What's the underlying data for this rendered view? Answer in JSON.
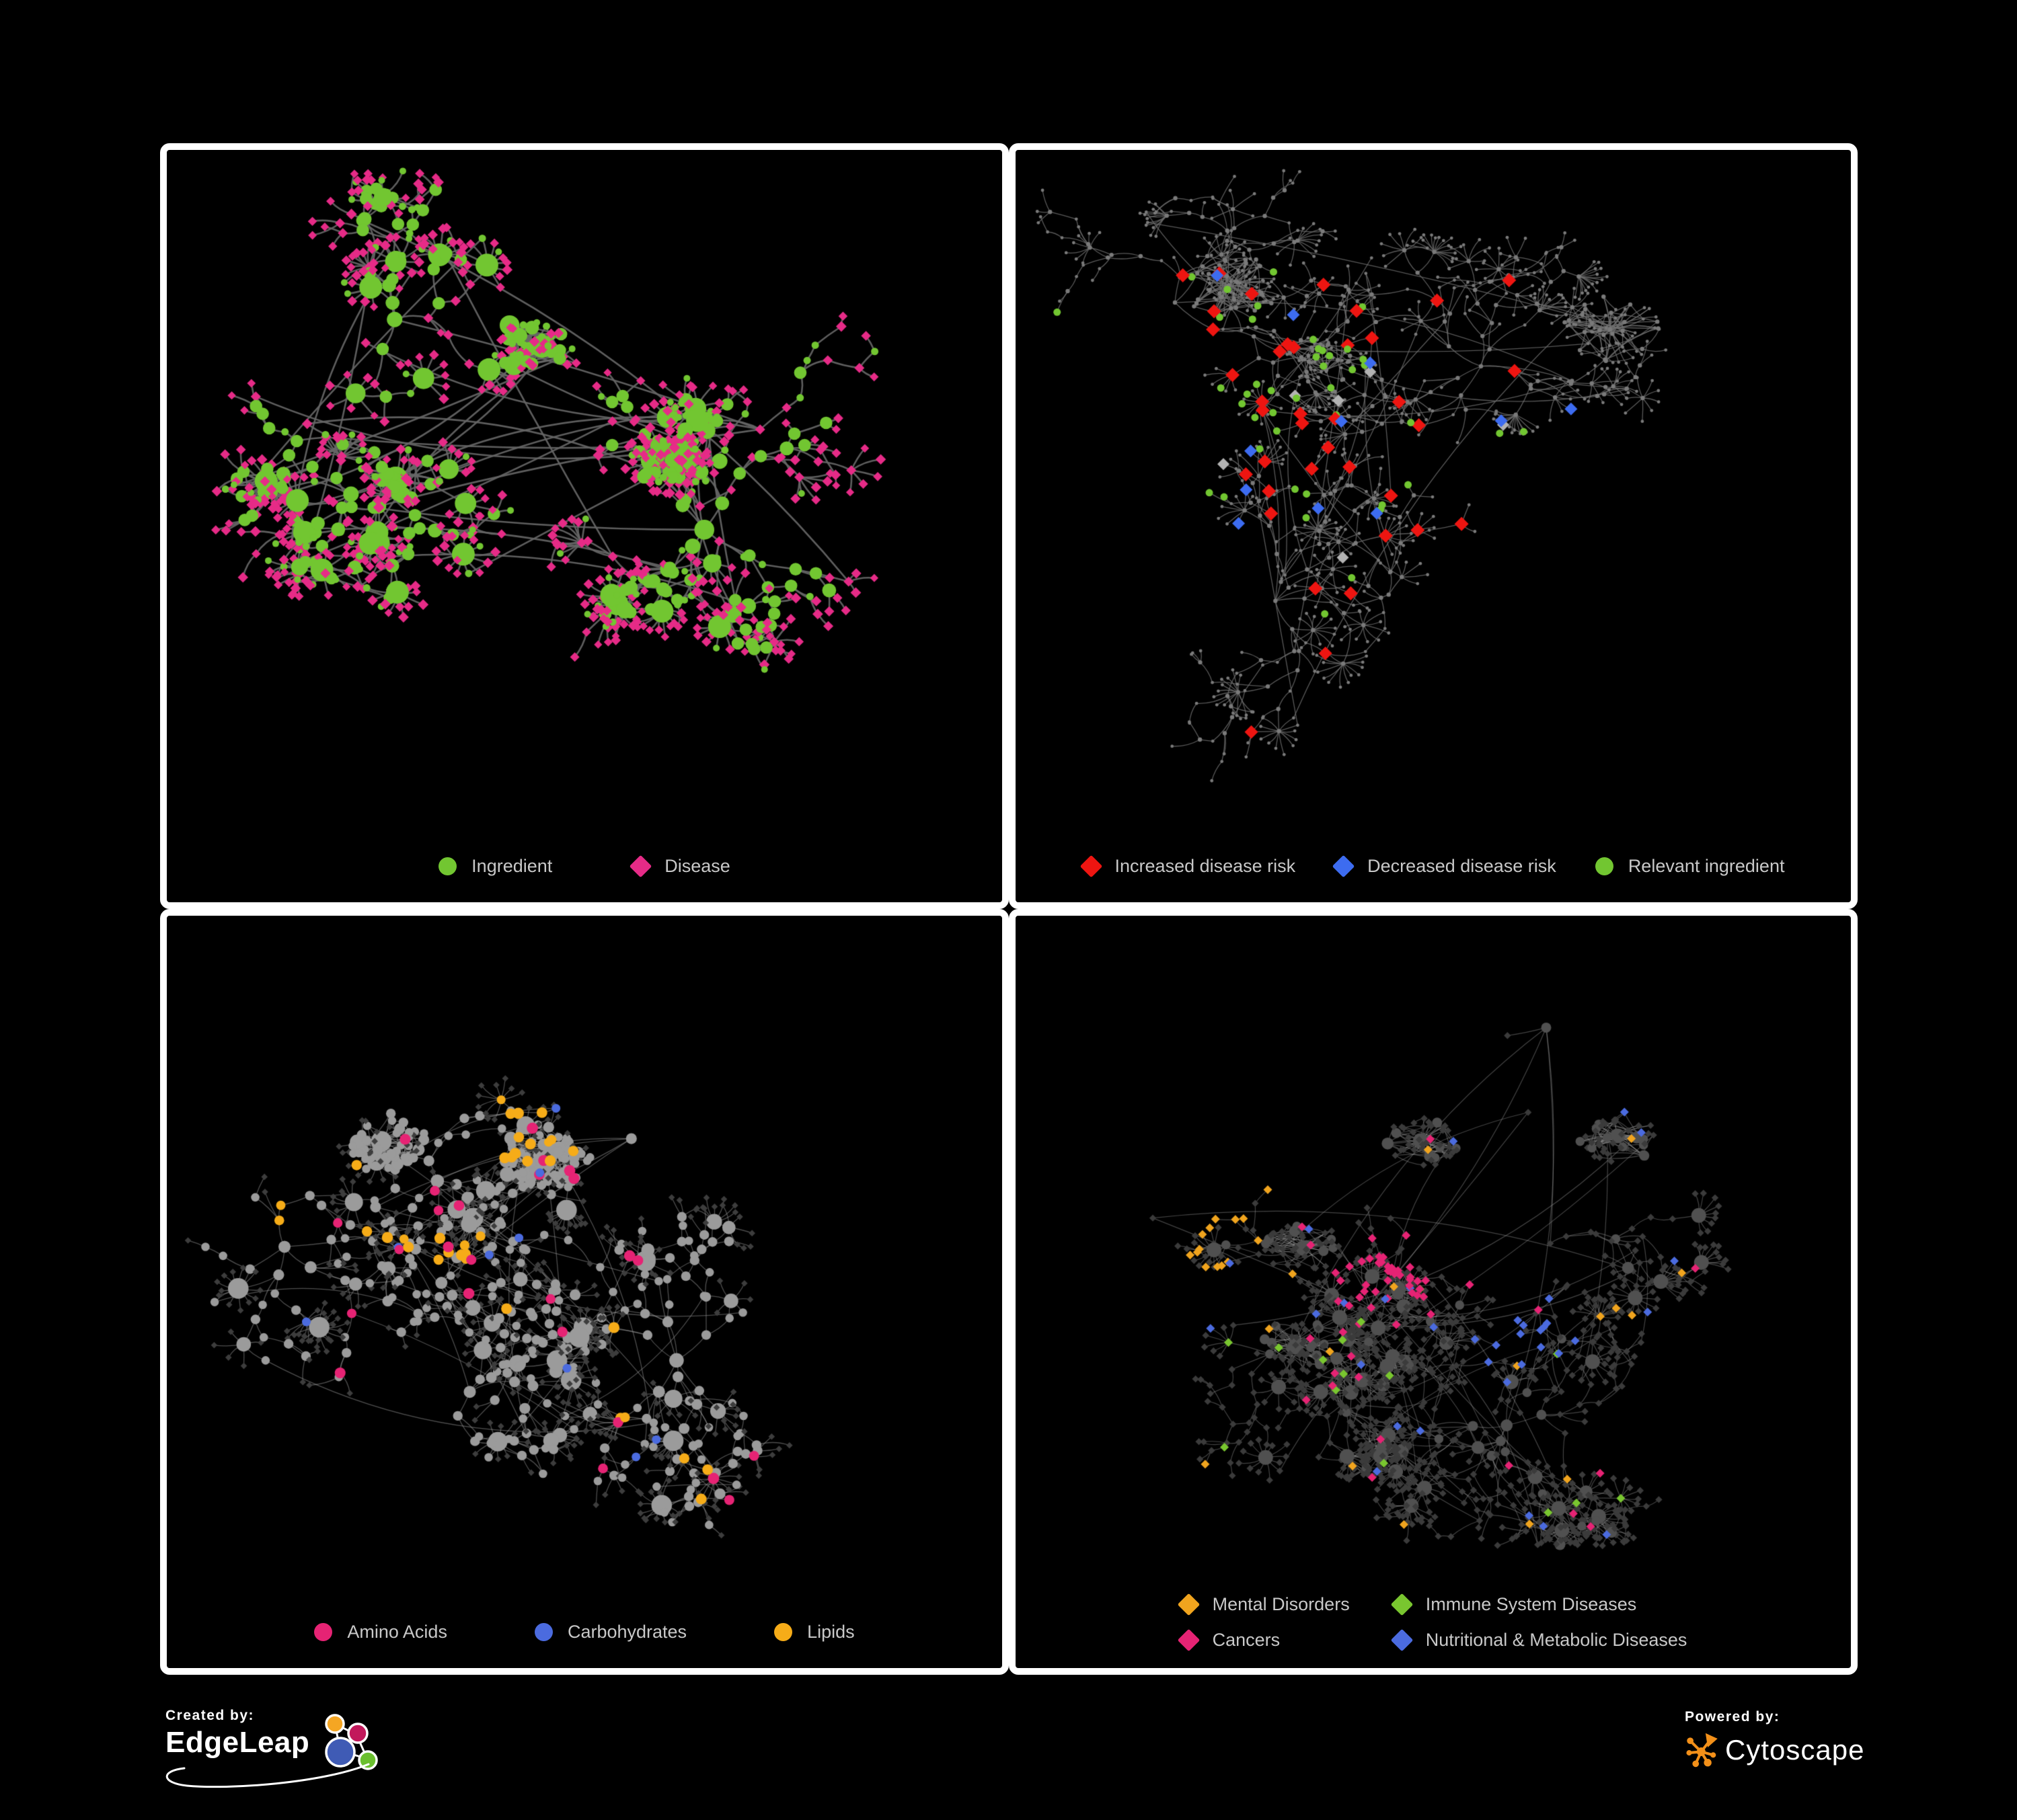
{
  "poster": {
    "background": "#000000",
    "panel_border": "#ffffff",
    "legend_text_color": "#c8c8c8"
  },
  "panels": [
    {
      "id": "ingredient-disease-network",
      "type": "network-graph",
      "legend": [
        {
          "label": "Ingredient",
          "shape": "circle",
          "color": "#72c631"
        },
        {
          "label": "Disease",
          "shape": "diamond",
          "color": "#e62b87"
        }
      ],
      "palette": {
        "edge": "#666666",
        "ingredient": "#72c631",
        "disease": "#e62b87"
      }
    },
    {
      "id": "disease-risk-network",
      "type": "network-graph",
      "legend": [
        {
          "label": "Increased disease risk",
          "shape": "diamond",
          "color": "#ee1511"
        },
        {
          "label": "Decreased disease risk",
          "shape": "diamond",
          "color": "#3d6cf0"
        },
        {
          "label": "Relevant ingredient",
          "shape": "circle",
          "color": "#72c631"
        }
      ],
      "palette": {
        "edge": "#6f6f6f",
        "node": "#7a7a7a",
        "increased_risk": "#ee1511",
        "decreased_risk": "#3d6cf0",
        "relevant_ingredient": "#72c631",
        "unclassified": "#b3b3b3"
      }
    },
    {
      "id": "nutrient-class-network",
      "type": "network-graph",
      "legend": [
        {
          "label": "Amino Acids",
          "shape": "circle",
          "color": "#e62374"
        },
        {
          "label": "Carbohydrates",
          "shape": "circle",
          "color": "#4b6bdf"
        },
        {
          "label": "Lipids",
          "shape": "circle",
          "color": "#f6ac18"
        }
      ],
      "palette": {
        "edge": "#a0a0a0",
        "ingredient": "#9b9b9b",
        "disease": "#3d3d3d",
        "amino_acids": "#e62374",
        "carbohydrates": "#4b6bdf",
        "lipids": "#f6ac18"
      }
    },
    {
      "id": "disease-class-network",
      "type": "network-graph",
      "legend": [
        {
          "label": "Mental Disorders",
          "shape": "diamond",
          "color": "#f0a41e"
        },
        {
          "label": "Immune System Diseases",
          "shape": "diamond",
          "color": "#79c62f"
        },
        {
          "label": "Cancers",
          "shape": "diamond",
          "color": "#e62374"
        },
        {
          "label": "Nutritional & Metabolic Diseases",
          "shape": "diamond",
          "color": "#4b6bdf"
        }
      ],
      "palette": {
        "edge": "#a0a0a0",
        "disease": "#3b3b3b",
        "ingredient": "#505050",
        "mental_disorders": "#f0a41e",
        "immune_system_diseases": "#79c62f",
        "cancers": "#e62374",
        "nutritional_metabolic_diseases": "#4b6bdf"
      }
    }
  ],
  "footer": {
    "created_by_label": "Created by:",
    "created_by_name": "EdgeLeap",
    "powered_by_label": "Powered by:",
    "powered_by_name": "Cytoscape",
    "edgeleap_logo_colors": {
      "orange": "#f5a623",
      "magenta": "#c2185b",
      "blue": "#3f5bb5",
      "green": "#6abf2e"
    },
    "cytoscape_logo_color": "#f39019"
  }
}
